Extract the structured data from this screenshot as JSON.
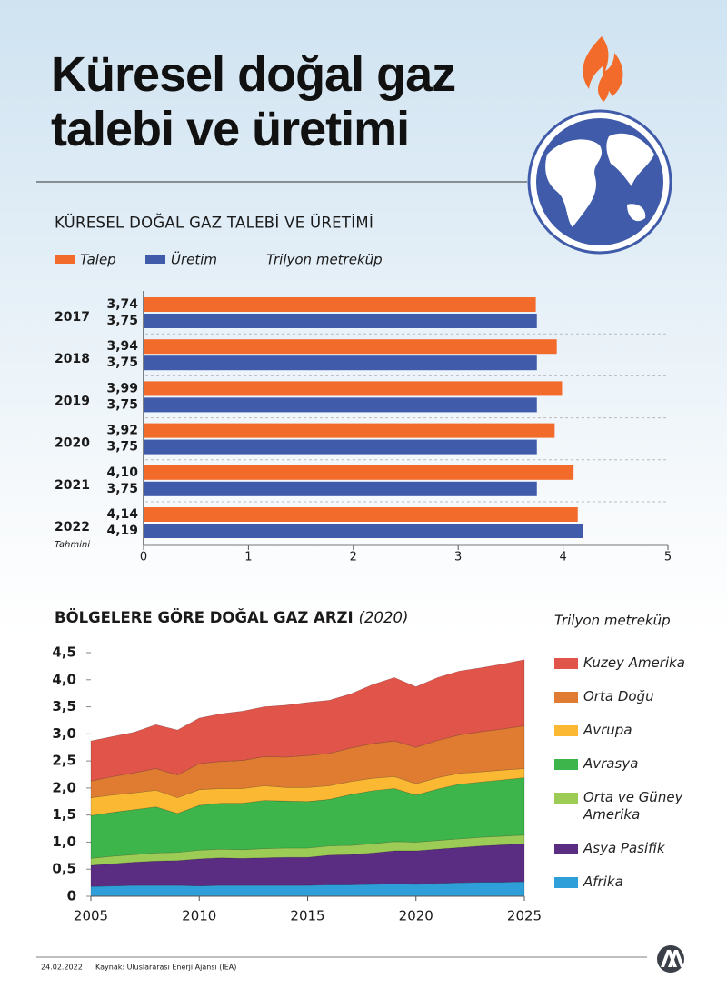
{
  "header": {
    "title": "Küresel doğal gaz talebi ve üretimi"
  },
  "chart_data": [
    {
      "type": "bar",
      "orientation": "horizontal",
      "title": "KÜRESEL DOĞAL GAZ TALEBİ VE ÜRETİMİ",
      "unit": "Trilyon metreküp",
      "categories": [
        "2017",
        "2018",
        "2019",
        "2020",
        "2021",
        "2022"
      ],
      "category_note": "Tahmini",
      "series": [
        {
          "name": "Talep",
          "color": "#f26b2a",
          "values": [
            3.74,
            3.94,
            3.99,
            3.92,
            4.1,
            4.14
          ],
          "value_labels": [
            "3,74",
            "3,94",
            "3,99",
            "3,92",
            "4,10",
            "4,14"
          ]
        },
        {
          "name": "Üretim",
          "color": "#3f5ba9",
          "values": [
            3.75,
            3.75,
            3.75,
            3.75,
            3.75,
            4.19
          ],
          "value_labels": [
            "3,75",
            "3,75",
            "3,75",
            "3,75",
            "3,75",
            "4,19"
          ]
        }
      ],
      "xlim": [
        0,
        5
      ],
      "xticks": [
        0,
        1,
        2,
        3,
        4,
        5
      ]
    },
    {
      "type": "area",
      "stacked": true,
      "title": "BÖLGELERE GÖRE DOĞAL GAZ ARZI",
      "subtitle": "(2020)",
      "unit": "Trilyon metreküp",
      "x": [
        2005,
        2006,
        2007,
        2008,
        2009,
        2010,
        2011,
        2012,
        2013,
        2014,
        2015,
        2016,
        2017,
        2018,
        2019,
        2020,
        2021,
        2022,
        2023,
        2024,
        2025
      ],
      "series": [
        {
          "name": "Kuzey Amerika",
          "color": "#e0544a",
          "values": [
            0.74,
            0.74,
            0.75,
            0.81,
            0.83,
            0.84,
            0.88,
            0.91,
            0.92,
            0.96,
            0.98,
            0.98,
            1.0,
            1.09,
            1.17,
            1.12,
            1.16,
            1.18,
            1.18,
            1.2,
            1.22
          ]
        },
        {
          "name": "Orta Doğu",
          "color": "#df7c31",
          "values": [
            0.31,
            0.34,
            0.37,
            0.4,
            0.42,
            0.48,
            0.5,
            0.52,
            0.54,
            0.56,
            0.59,
            0.6,
            0.62,
            0.64,
            0.66,
            0.67,
            0.69,
            0.71,
            0.74,
            0.76,
            0.79
          ]
        },
        {
          "name": "Avrupa",
          "color": "#fbb832",
          "values": [
            0.33,
            0.32,
            0.31,
            0.31,
            0.29,
            0.29,
            0.27,
            0.27,
            0.27,
            0.25,
            0.26,
            0.25,
            0.24,
            0.23,
            0.22,
            0.21,
            0.21,
            0.2,
            0.19,
            0.18,
            0.17
          ]
        },
        {
          "name": "Avrasya",
          "color": "#3db54a",
          "values": [
            0.79,
            0.81,
            0.83,
            0.85,
            0.72,
            0.83,
            0.85,
            0.86,
            0.89,
            0.87,
            0.86,
            0.86,
            0.94,
            0.98,
            0.98,
            0.87,
            0.95,
            1.01,
            1.02,
            1.04,
            1.06
          ]
        },
        {
          "name": "Orta ve Güney Amerika",
          "color": "#9ccc55",
          "values": [
            0.13,
            0.14,
            0.14,
            0.15,
            0.15,
            0.16,
            0.16,
            0.16,
            0.17,
            0.17,
            0.17,
            0.17,
            0.17,
            0.17,
            0.17,
            0.16,
            0.16,
            0.16,
            0.16,
            0.16,
            0.16
          ]
        },
        {
          "name": "Asya Pasifik",
          "color": "#5b2d82",
          "values": [
            0.39,
            0.41,
            0.43,
            0.45,
            0.46,
            0.5,
            0.51,
            0.5,
            0.51,
            0.52,
            0.52,
            0.55,
            0.56,
            0.58,
            0.61,
            0.62,
            0.63,
            0.65,
            0.67,
            0.69,
            0.7
          ]
        },
        {
          "name": "Afrika",
          "color": "#2e9fd8",
          "values": [
            0.18,
            0.19,
            0.2,
            0.2,
            0.2,
            0.19,
            0.2,
            0.2,
            0.2,
            0.2,
            0.2,
            0.21,
            0.21,
            0.22,
            0.23,
            0.22,
            0.24,
            0.25,
            0.26,
            0.26,
            0.27
          ]
        }
      ],
      "xlim": [
        2005,
        2025
      ],
      "xticks": [
        2005,
        2010,
        2015,
        2020,
        2025
      ],
      "ylim": [
        0,
        4.5
      ],
      "yticks": [
        0,
        {
          "value": 0.5,
          "label": "0,5"
        },
        {
          "value": 1,
          "label": "1,0"
        },
        {
          "value": 1.5,
          "label": "1,5"
        },
        {
          "value": 2,
          "label": "2,0"
        },
        {
          "value": 2.5,
          "label": "2,5"
        },
        {
          "value": 3,
          "label": "3,0"
        },
        {
          "value": 3.5,
          "label": "3,5"
        },
        {
          "value": 4,
          "label": "4,0"
        },
        {
          "value": 4.5,
          "label": "4,5"
        }
      ]
    }
  ],
  "footer": {
    "date": "24.02.2022",
    "source": "Kaynak: Uluslararası Enerji Ajansı (IEA)"
  }
}
